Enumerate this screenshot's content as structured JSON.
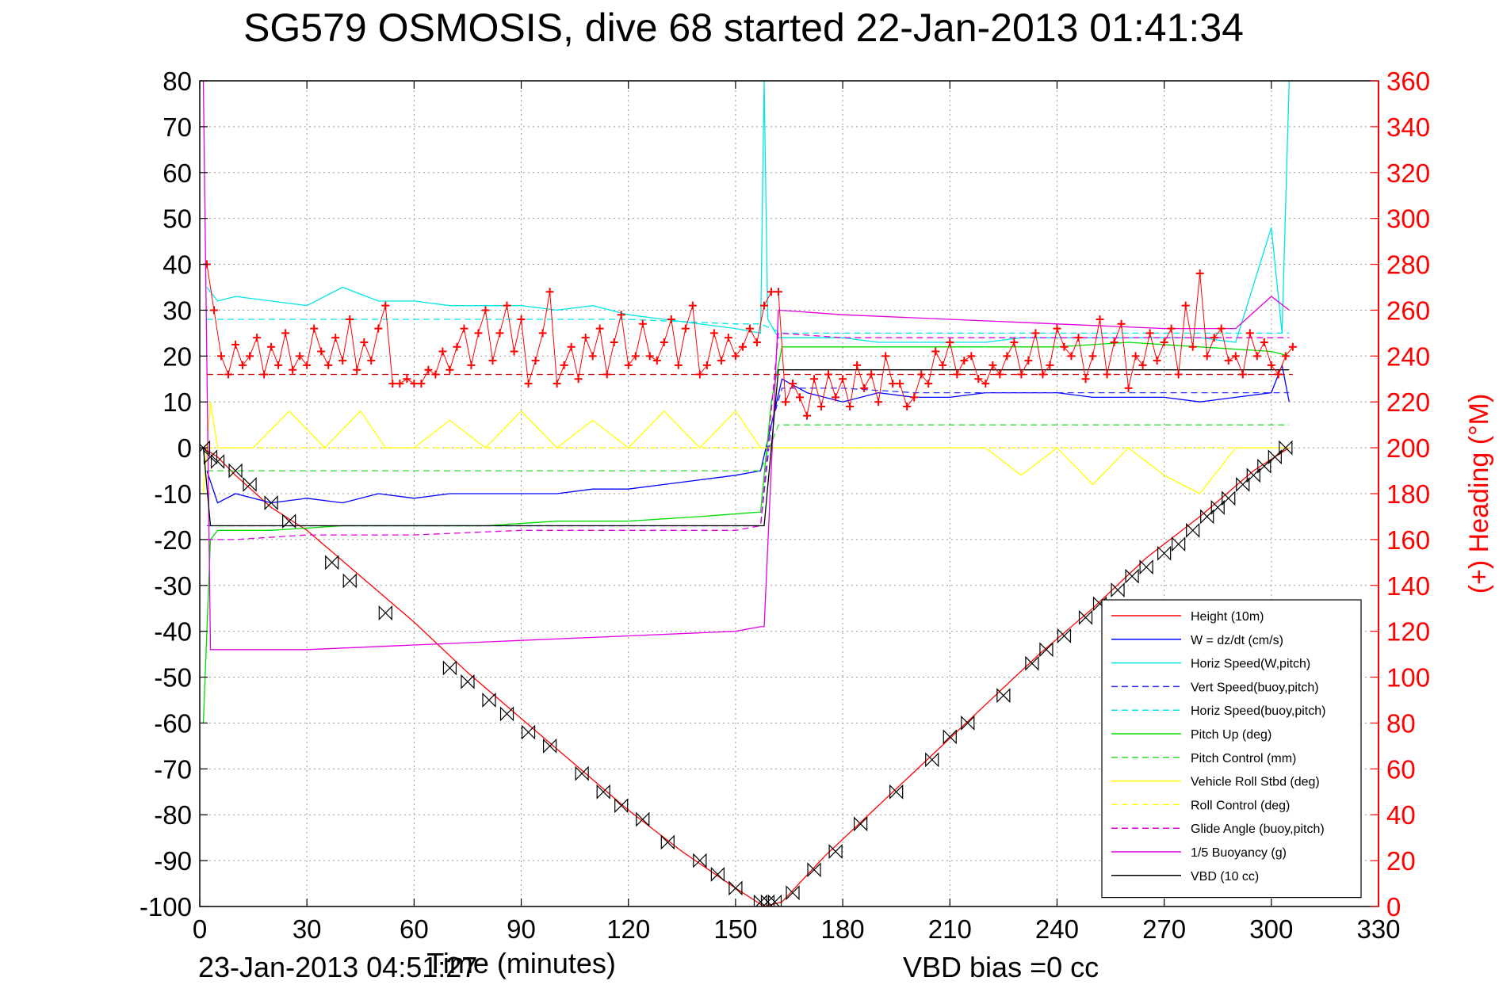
{
  "chart_data": {
    "type": "line",
    "title": "SG579 OSMOSIS, dive 68 started 22-Jan-2013 01:41:34",
    "xlabel": "Time (minutes)",
    "ylabel": "",
    "y2label": "(+) Heading (°M)",
    "footer_left": "23-Jan-2013 04:51:27",
    "footer_right": "VBD bias =0 cc",
    "xlim": [
      0,
      330
    ],
    "ylim": [
      -100,
      80
    ],
    "y2lim": [
      0,
      360
    ],
    "grid": true,
    "legend_position": "bottom-right",
    "x_ticks": [
      "0",
      "30",
      "60",
      "90",
      "120",
      "150",
      "180",
      "210",
      "240",
      "270",
      "300",
      "330"
    ],
    "y_ticks": [
      "80",
      "70",
      "60",
      "50",
      "40",
      "30",
      "20",
      "10",
      "0",
      "-10",
      "-20",
      "-30",
      "-40",
      "-50",
      "-60",
      "-70",
      "-80",
      "-90",
      "-100"
    ],
    "y2_ticks": [
      "360",
      "340",
      "320",
      "300",
      "280",
      "260",
      "240",
      "220",
      "200",
      "180",
      "160",
      "140",
      "120",
      "100",
      "80",
      "60",
      "40",
      "20",
      "0"
    ],
    "series": [
      {
        "name": "Height (10m)",
        "color": "#ff0000",
        "style": "solid",
        "x": [
          1,
          5,
          10,
          20,
          30,
          45,
          60,
          75,
          90,
          105,
          120,
          135,
          150,
          158,
          163,
          175,
          190,
          205,
          220,
          235,
          250,
          265,
          280,
          295,
          305
        ],
        "y": [
          0,
          -2,
          -6,
          -13,
          -18,
          -28,
          -38,
          -49,
          -59,
          -69,
          -79,
          -88,
          -96,
          -100,
          -99,
          -89,
          -78,
          -67,
          -56,
          -45,
          -35,
          -24,
          -15,
          -5,
          0
        ]
      },
      {
        "name": "W = dz/dt (cm/s)",
        "color": "#0000ff",
        "style": "solid",
        "x": [
          2,
          5,
          10,
          20,
          30,
          40,
          50,
          60,
          70,
          80,
          90,
          100,
          110,
          120,
          130,
          140,
          150,
          157,
          160,
          163,
          170,
          180,
          190,
          200,
          210,
          220,
          230,
          240,
          250,
          260,
          270,
          280,
          290,
          300,
          303,
          305
        ],
        "y": [
          -5,
          -12,
          -10,
          -12,
          -11,
          -12,
          -10,
          -11,
          -10,
          -10,
          -10,
          -10,
          -9,
          -9,
          -8,
          -7,
          -6,
          -5,
          5,
          15,
          12,
          10,
          12,
          11,
          11,
          12,
          12,
          12,
          11,
          11,
          11,
          10,
          11,
          12,
          18,
          10
        ]
      },
      {
        "name": "Horiz Speed(W,pitch)",
        "color": "#00e5e5",
        "style": "solid",
        "x": [
          2,
          5,
          10,
          20,
          30,
          40,
          50,
          60,
          70,
          80,
          90,
          100,
          110,
          120,
          130,
          140,
          150,
          157,
          158,
          159,
          162,
          170,
          180,
          190,
          200,
          210,
          220,
          230,
          240,
          250,
          260,
          270,
          280,
          290,
          300,
          303,
          305
        ],
        "y": [
          35,
          32,
          33,
          32,
          31,
          35,
          32,
          32,
          31,
          31,
          31,
          30,
          31,
          29,
          28,
          27,
          26,
          25,
          80,
          28,
          24,
          24,
          24,
          23,
          23,
          23,
          23,
          24,
          24,
          24,
          24,
          24,
          24,
          23,
          48,
          25,
          80
        ]
      },
      {
        "name": "Vert Speed(buoy,pitch)",
        "color": "#3030ff",
        "style": "dashed",
        "x": [
          2,
          10,
          20,
          40,
          60,
          80,
          100,
          120,
          140,
          157,
          160,
          163,
          180,
          200,
          220,
          240,
          260,
          280,
          300,
          305
        ],
        "y": [
          -17,
          -17,
          -17,
          -17,
          -17,
          -17,
          -17,
          -17,
          -17,
          -17,
          5,
          13,
          13,
          12,
          12,
          12,
          12,
          12,
          12,
          12
        ]
      },
      {
        "name": "Horiz Speed(buoy,pitch)",
        "color": "#00e5e5",
        "style": "dashed",
        "x": [
          2,
          10,
          30,
          60,
          90,
          120,
          150,
          157,
          163,
          180,
          210,
          240,
          270,
          300,
          305
        ],
        "y": [
          28,
          28,
          28,
          28,
          28,
          28,
          27,
          27,
          25,
          25,
          25,
          25,
          25,
          25,
          25
        ]
      },
      {
        "name": "Pitch Up (deg)",
        "color": "#00dd00",
        "style": "solid",
        "x": [
          1,
          3,
          5,
          10,
          20,
          40,
          60,
          80,
          100,
          120,
          140,
          157,
          160,
          163,
          180,
          200,
          220,
          240,
          260,
          280,
          300,
          305
        ],
        "y": [
          -60,
          -20,
          -18,
          -18,
          -18,
          -17,
          -17,
          -17,
          -16,
          -16,
          -15,
          -14,
          10,
          22,
          22,
          22,
          22,
          22,
          23,
          22,
          21,
          20
        ]
      },
      {
        "name": "Pitch Control (mm)",
        "color": "#33dd33",
        "style": "dashed",
        "x": [
          2,
          10,
          30,
          60,
          90,
          120,
          150,
          157,
          162,
          180,
          210,
          240,
          270,
          300,
          305
        ],
        "y": [
          -5,
          -5,
          -5,
          -5,
          -5,
          -5,
          -5,
          -5,
          5,
          5,
          5,
          5,
          5,
          5,
          5
        ]
      },
      {
        "name": "Vehicle Roll Stbd (deg)",
        "color": "#ffff00",
        "style": "solid",
        "x": [
          1,
          3,
          5,
          15,
          25,
          35,
          45,
          52,
          60,
          70,
          80,
          90,
          100,
          110,
          120,
          130,
          140,
          150,
          157,
          162,
          170,
          180,
          190,
          200,
          210,
          220,
          230,
          240,
          250,
          260,
          270,
          280,
          290,
          300,
          305
        ],
        "y": [
          -10,
          10,
          0,
          0,
          8,
          0,
          8,
          0,
          0,
          6,
          0,
          8,
          0,
          6,
          0,
          8,
          0,
          8,
          0,
          0,
          0,
          0,
          0,
          0,
          0,
          0,
          -6,
          0,
          -8,
          0,
          -6,
          -10,
          0,
          0,
          0
        ]
      },
      {
        "name": "Roll Control (deg)",
        "color": "#ffff00",
        "style": "dashed",
        "x": [
          2,
          30,
          60,
          90,
          120,
          150,
          157,
          162,
          190,
          210,
          240,
          270,
          300,
          305
        ],
        "y": [
          0,
          0,
          0,
          0,
          0,
          0,
          0,
          0,
          0,
          0,
          0,
          0,
          0,
          0
        ]
      },
      {
        "name": "Glide Angle (buoy,pitch)",
        "color": "#e000e0",
        "style": "dashed",
        "x": [
          2,
          10,
          30,
          60,
          90,
          120,
          150,
          157,
          162,
          180,
          210,
          240,
          270,
          300,
          305
        ],
        "y": [
          -20,
          -20,
          -19,
          -19,
          -18,
          -18,
          -18,
          -17,
          25,
          24,
          24,
          24,
          24,
          24,
          24
        ]
      },
      {
        "name": "1/5 Buoyancy (g)",
        "color": "#e000e0",
        "style": "solid",
        "x": [
          1,
          3,
          30,
          60,
          90,
          120,
          150,
          157,
          158,
          162,
          180,
          210,
          240,
          270,
          290,
          300,
          305
        ],
        "y": [
          80,
          -44,
          -44,
          -43,
          -42,
          -41,
          -40,
          -39,
          -39,
          30,
          29,
          28,
          27,
          26,
          26,
          33,
          30
        ]
      },
      {
        "name": "VBD (10 cc)",
        "color": "#000000",
        "style": "solid",
        "x": [
          1,
          3,
          30,
          60,
          90,
          120,
          150,
          157,
          158,
          162,
          180,
          210,
          240,
          270,
          290,
          300,
          305
        ],
        "y": [
          0,
          -17,
          -17,
          -17,
          -17,
          -17,
          -17,
          -17,
          -17,
          17,
          17,
          17,
          17,
          17,
          17,
          17,
          17
        ]
      }
    ],
    "heading_series": {
      "name": "Heading",
      "axis": "right",
      "color": "#ff0000",
      "marker": "plus",
      "x": [
        2,
        4,
        6,
        8,
        10,
        12,
        14,
        16,
        18,
        20,
        22,
        24,
        26,
        28,
        30,
        32,
        34,
        36,
        38,
        40,
        42,
        44,
        46,
        48,
        50,
        52,
        54,
        56,
        58,
        60,
        62,
        64,
        66,
        68,
        70,
        72,
        74,
        76,
        78,
        80,
        82,
        84,
        86,
        88,
        90,
        92,
        94,
        96,
        98,
        100,
        102,
        104,
        106,
        108,
        110,
        112,
        114,
        116,
        118,
        120,
        122,
        124,
        126,
        128,
        130,
        132,
        134,
        136,
        138,
        140,
        142,
        144,
        146,
        148,
        150,
        152,
        154,
        156,
        158,
        160,
        162,
        164,
        166,
        168,
        170,
        172,
        174,
        176,
        178,
        180,
        182,
        184,
        186,
        188,
        190,
        192,
        194,
        196,
        198,
        200,
        202,
        204,
        206,
        208,
        210,
        212,
        214,
        216,
        218,
        220,
        222,
        224,
        226,
        228,
        230,
        232,
        234,
        236,
        238,
        240,
        242,
        244,
        246,
        248,
        250,
        252,
        254,
        256,
        258,
        260,
        262,
        264,
        266,
        268,
        270,
        272,
        274,
        276,
        278,
        280,
        282,
        284,
        286,
        288,
        290,
        292,
        294,
        296,
        298,
        300,
        302,
        304,
        306
      ],
      "y": [
        280,
        260,
        240,
        232,
        245,
        236,
        240,
        248,
        232,
        244,
        236,
        250,
        234,
        240,
        236,
        252,
        242,
        236,
        248,
        238,
        256,
        234,
        246,
        238,
        252,
        262,
        228,
        228,
        230,
        228,
        228,
        234,
        232,
        242,
        234,
        244,
        252,
        236,
        250,
        260,
        238,
        250,
        262,
        242,
        256,
        228,
        238,
        250,
        268,
        228,
        236,
        244,
        230,
        248,
        240,
        252,
        232,
        246,
        258,
        236,
        240,
        254,
        240,
        238,
        246,
        256,
        236,
        252,
        262,
        232,
        236,
        250,
        238,
        248,
        240,
        244,
        252,
        246,
        262,
        268,
        268,
        220,
        228,
        222,
        214,
        230,
        218,
        232,
        222,
        230,
        218,
        236,
        226,
        232,
        220,
        240,
        228,
        228,
        218,
        222,
        232,
        228,
        242,
        236,
        246,
        232,
        238,
        240,
        230,
        228,
        236,
        232,
        240,
        246,
        232,
        238,
        250,
        232,
        236,
        252,
        244,
        240,
        248,
        230,
        240,
        256,
        232,
        246,
        254,
        226,
        240,
        236,
        250,
        238,
        246,
        252,
        232,
        262,
        244,
        276,
        240,
        248,
        252,
        238,
        240,
        232,
        250,
        240,
        246,
        236,
        232,
        240,
        244
      ]
    },
    "heading_mean": 232,
    "vbd_markers": {
      "shape": "bowtie",
      "x": [
        1,
        3,
        5,
        10,
        14,
        20,
        25,
        37,
        42,
        52,
        70,
        75,
        81,
        86,
        92,
        98,
        107,
        113,
        118,
        124,
        131,
        140,
        145,
        150,
        157,
        159,
        161,
        166,
        172,
        178,
        185,
        195,
        205,
        210,
        215,
        225,
        233,
        237,
        242,
        248,
        252,
        257,
        261,
        265,
        270,
        274,
        278,
        282,
        285,
        288,
        292,
        295,
        298,
        301,
        304
      ],
      "y": [
        0,
        -2,
        -3,
        -5,
        -8,
        -12,
        -16,
        -25,
        -29,
        -36,
        -48,
        -51,
        -55,
        -58,
        -62,
        -65,
        -71,
        -75,
        -78,
        -81,
        -86,
        -90,
        -93,
        -96,
        -99,
        -99,
        -99,
        -97,
        -92,
        -88,
        -82,
        -75,
        -68,
        -63,
        -60,
        -54,
        -47,
        -44,
        -41,
        -37,
        -34,
        -31,
        -28,
        -26,
        -23,
        -21,
        -18,
        -15,
        -13,
        -11,
        -8,
        -6,
        -4,
        -2,
        0
      ]
    }
  }
}
